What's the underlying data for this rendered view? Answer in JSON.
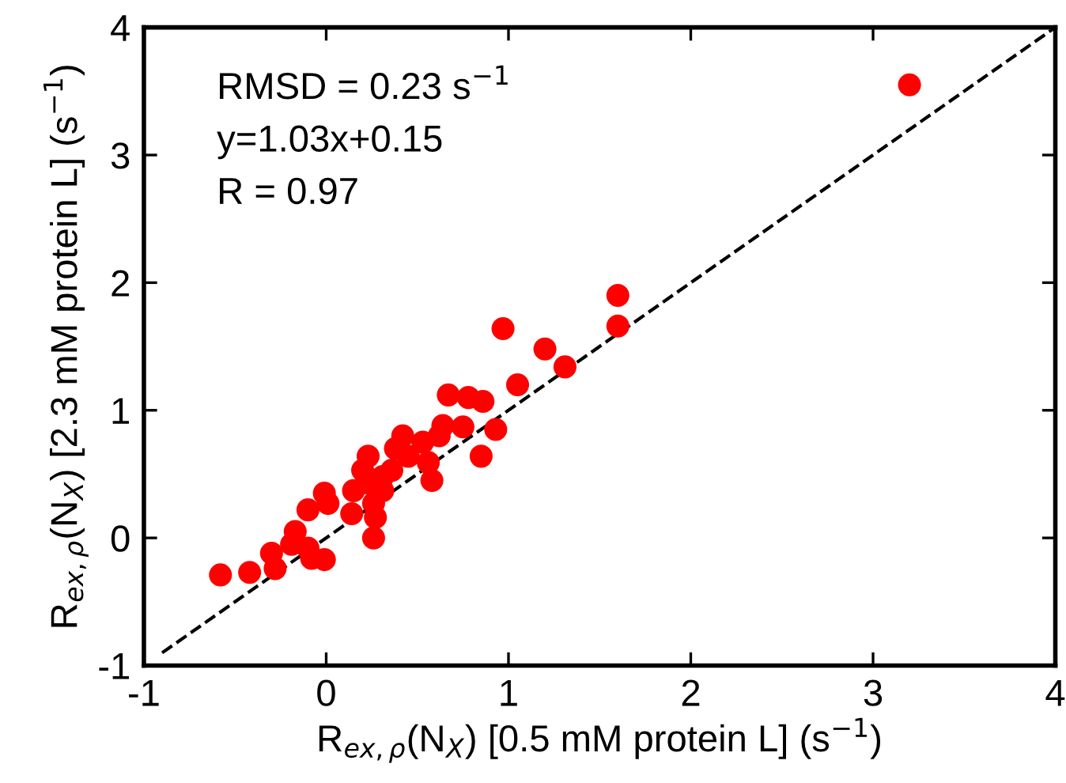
{
  "chart_data": {
    "type": "scatter",
    "xlabel": "R$_{ex,ρ}$(N$_{X}$) [0.5 mM protein L] (s$^{−1}$)",
    "ylabel": "R$_{ex,ρ}$(N$_{X}$) [2.3 mM protein L] (s$^{−1}$)",
    "annotations": [
      "RMSD = 0.23 s$^{−1}$",
      "y=1.03x+0.15",
      "R = 0.97"
    ],
    "xlim": [
      -1,
      4
    ],
    "ylim": [
      -1,
      4
    ],
    "xticks": [
      -1,
      0,
      1,
      2,
      3,
      4
    ],
    "yticks": [
      -1,
      0,
      1,
      2,
      3,
      4
    ],
    "grid": false,
    "legend": false,
    "marker": "circle",
    "series": [
      {
        "color": "#ff0000",
        "x": [
          -0.58,
          -0.42,
          -0.3,
          -0.28,
          -0.17,
          -0.19,
          -0.1,
          -0.01,
          -0.08,
          -0.1,
          -0.01,
          0.01,
          0.14,
          0.15,
          0.23,
          0.2,
          0.26,
          0.27,
          0.26,
          0.23,
          0.31,
          0.36,
          0.42,
          0.45,
          0.53,
          0.56,
          0.58,
          0.62,
          0.64,
          0.67,
          0.75,
          0.78,
          0.86,
          0.85,
          0.93,
          0.97,
          1.05,
          1.2,
          1.31,
          1.6,
          1.6,
          3.2,
          0.31,
          0.38
        ],
        "values": [
          -0.29,
          -0.27,
          -0.12,
          -0.24,
          0.05,
          -0.05,
          -0.08,
          -0.17,
          -0.16,
          0.22,
          0.35,
          0.27,
          0.19,
          0.37,
          0.64,
          0.53,
          0.0,
          0.16,
          0.27,
          0.43,
          0.37,
          0.53,
          0.8,
          0.64,
          0.75,
          0.59,
          0.45,
          0.8,
          0.88,
          1.12,
          0.87,
          1.1,
          1.07,
          0.64,
          0.85,
          1.64,
          1.2,
          1.48,
          1.34,
          1.9,
          1.66,
          3.55,
          0.48,
          0.7
        ]
      },
      {
        "type": "line",
        "color": "#000000",
        "line_style": "dashed",
        "marker": "none",
        "x": [
          -0.9,
          4
        ],
        "values": [
          -0.9,
          4
        ]
      }
    ]
  }
}
